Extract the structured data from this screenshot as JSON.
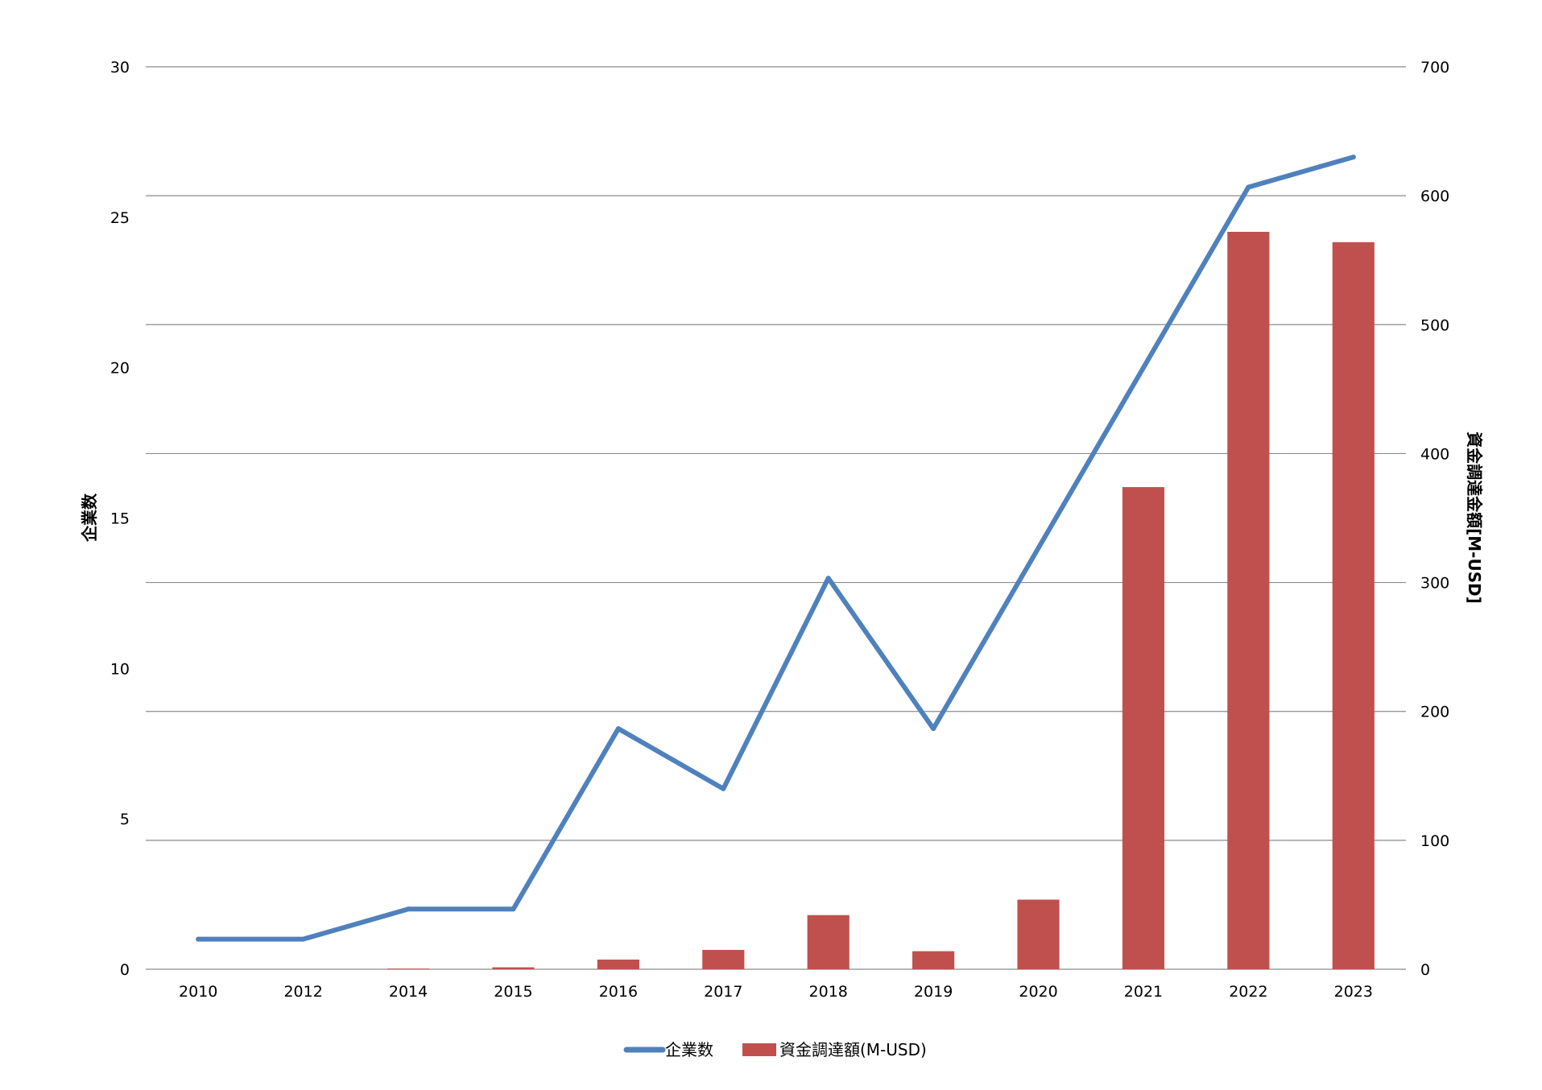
{
  "chart_data": {
    "type": "bar",
    "categories": [
      "2010",
      "2012",
      "2014",
      "2015",
      "2016",
      "2017",
      "2018",
      "2019",
      "2020",
      "2021",
      "2022",
      "2023"
    ],
    "series": [
      {
        "name": "資金調達額(M-USD)",
        "type": "bar",
        "axis": "right",
        "color": "#C0504D",
        "values": [
          0,
          0,
          0.5,
          1.5,
          7.5,
          15,
          42,
          14,
          54,
          374,
          572,
          564
        ]
      },
      {
        "name": "企業数",
        "type": "line",
        "axis": "left",
        "color": "#4F81BD",
        "values": [
          1,
          1,
          2,
          2,
          8,
          6,
          13,
          8,
          14,
          20,
          26,
          27
        ]
      }
    ],
    "y_left": {
      "label": "企業数",
      "ylim": [
        0,
        30
      ],
      "ticks": [
        "0",
        "5",
        "10",
        "15",
        "20",
        "25",
        "30"
      ]
    },
    "y_right": {
      "label": "資金調達金額[M-USD]",
      "ylim": [
        0,
        700
      ],
      "ticks": [
        "0",
        "100",
        "200",
        "300",
        "400",
        "500",
        "600",
        "700"
      ]
    },
    "xlabel": "",
    "title": "",
    "grid": true,
    "legend": {
      "position": "bottom",
      "items": [
        "企業数",
        "資金調達額(M-USD)"
      ]
    }
  }
}
